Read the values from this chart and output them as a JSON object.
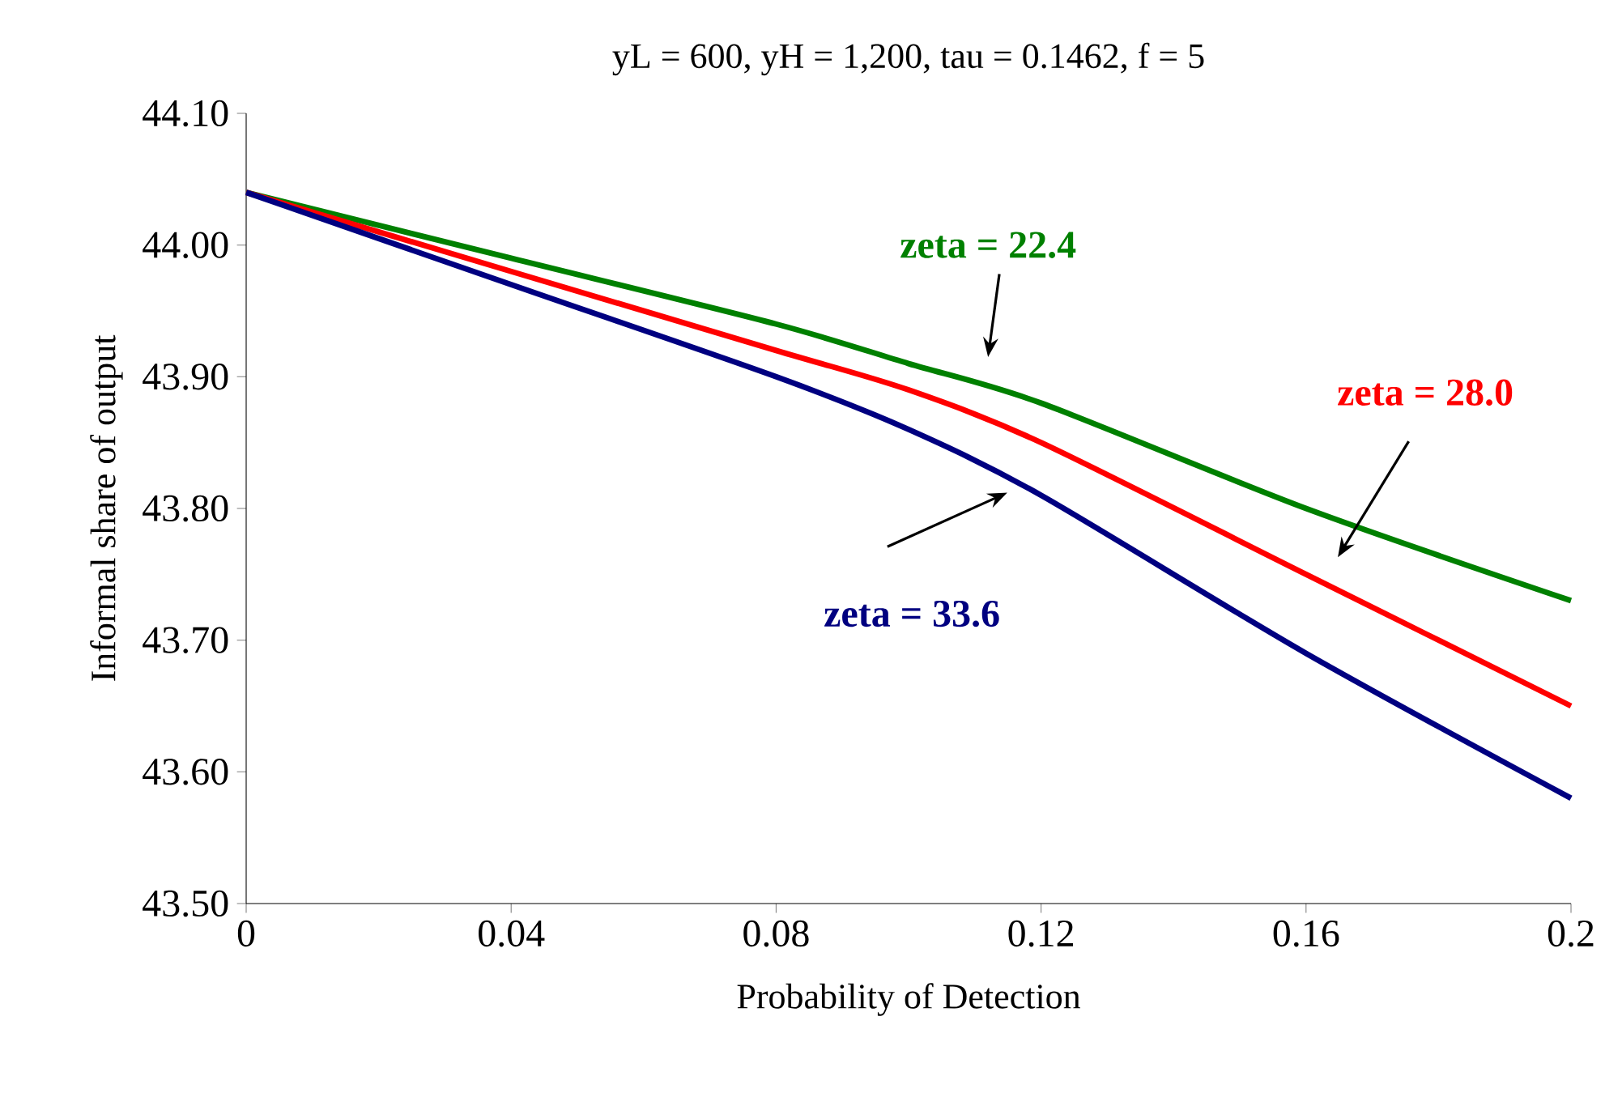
{
  "chart_data": {
    "type": "line",
    "title": "yL = 600, yH = 1,200, tau = 0.1462, f = 5",
    "xlabel": "Probability of Detection",
    "ylabel": "Informal share of output",
    "x": [
      0,
      0.04,
      0.08,
      0.1,
      0.12,
      0.16,
      0.2
    ],
    "series": [
      {
        "name": "zeta = 22.4",
        "color": "#008000",
        "values": [
          44.04,
          43.99,
          43.94,
          43.91,
          43.88,
          43.8,
          43.73
        ]
      },
      {
        "name": "zeta = 28.0",
        "color": "#ff0000",
        "values": [
          44.04,
          43.98,
          43.92,
          43.89,
          43.85,
          43.75,
          43.65
        ]
      },
      {
        "name": "zeta = 33.6",
        "color": "#000080",
        "values": [
          44.04,
          43.97,
          43.9,
          43.86,
          43.81,
          43.69,
          43.58
        ]
      }
    ],
    "xlim": [
      0,
      0.2
    ],
    "ylim": [
      43.5,
      44.1
    ],
    "xticks": [
      0,
      0.04,
      0.08,
      0.12,
      0.16,
      0.2
    ],
    "yticks": [
      {
        "value": 43.5,
        "label": "43.50"
      },
      {
        "value": 43.6,
        "label": "43.60"
      },
      {
        "value": 43.7,
        "label": "43.70"
      },
      {
        "value": 43.8,
        "label": "43.80"
      },
      {
        "value": 43.9,
        "label": "43.90"
      },
      {
        "value": 44.0,
        "label": "44.00"
      },
      {
        "value": 44.1,
        "label": "44.10"
      }
    ],
    "grid": false,
    "legend": false,
    "marker": "none",
    "line_style": "solid"
  }
}
